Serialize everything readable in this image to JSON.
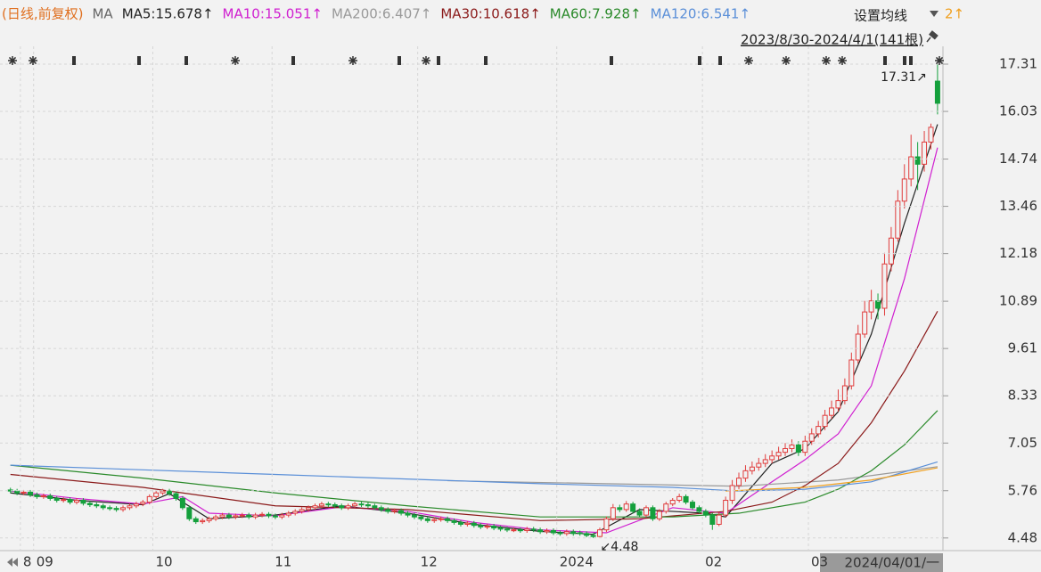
{
  "chart_data": {
    "type": "candlestick",
    "title_left": "(日线,前复权)",
    "ma_label": "MA",
    "settings": "设置均线",
    "range_label": "2023/8/30-2024/4/1(141根)",
    "cursor_label": "2024/04/01/一",
    "up_color": "#e03c3c",
    "down_color": "#14a03c",
    "ylim": [
      4.21,
      17.72
    ],
    "yticks": [
      17.31,
      16.03,
      14.74,
      13.46,
      12.18,
      10.89,
      9.61,
      8.33,
      7.05,
      5.76,
      4.48
    ],
    "grid": true,
    "xticks": [
      {
        "value": 2,
        "label": "8"
      },
      {
        "value": 4,
        "label": "09"
      },
      {
        "value": 22,
        "label": "10"
      },
      {
        "value": 40,
        "label": "11"
      },
      {
        "value": 62,
        "label": "12"
      },
      {
        "value": 83,
        "label": "2024"
      },
      {
        "value": 105,
        "label": "02"
      },
      {
        "value": 121,
        "label": "03"
      }
    ],
    "open": [
      5.78,
      5.75,
      5.7,
      5.72,
      5.65,
      5.6,
      5.62,
      5.55,
      5.5,
      5.52,
      5.45,
      5.5,
      5.42,
      5.38,
      5.35,
      5.3,
      5.28,
      5.25,
      5.3,
      5.35,
      5.4,
      5.45,
      5.6,
      5.7,
      5.75,
      5.68,
      5.55,
      5.3,
      5.0,
      4.92,
      4.95,
      5.0,
      5.05,
      5.1,
      5.05,
      5.08,
      5.1,
      5.05,
      5.1,
      5.12,
      5.08,
      5.05,
      5.1,
      5.15,
      5.2,
      5.25,
      5.3,
      5.35,
      5.4,
      5.38,
      5.35,
      5.3,
      5.35,
      5.4,
      5.38,
      5.35,
      5.3,
      5.25,
      5.2,
      5.22,
      5.15,
      5.1,
      5.05,
      5.0,
      4.95,
      4.98,
      5.0,
      4.95,
      4.9,
      4.85,
      4.88,
      4.82,
      4.78,
      4.8,
      4.75,
      4.72,
      4.7,
      4.7,
      4.68,
      4.72,
      4.7,
      4.65,
      4.68,
      4.62,
      4.6,
      4.65,
      4.62,
      4.6,
      4.55,
      4.52,
      4.7,
      5.0,
      5.3,
      5.25,
      5.4,
      5.2,
      5.1,
      5.3,
      5.0,
      5.2,
      5.4,
      5.5,
      5.6,
      5.45,
      5.3,
      5.2,
      5.1,
      4.85,
      5.1,
      5.5,
      5.9,
      6.1,
      6.3,
      6.4,
      6.5,
      6.6,
      6.7,
      6.8,
      6.9,
      7.0,
      6.8,
      7.1,
      7.3,
      7.5,
      7.8,
      8.0,
      8.2,
      8.6,
      9.3,
      10.0,
      10.6,
      10.9,
      10.7,
      11.9,
      12.6,
      13.6,
      14.2,
      14.8,
      14.6,
      15.2,
      16.85
    ],
    "high": [
      5.84,
      5.81,
      5.78,
      5.78,
      5.71,
      5.68,
      5.68,
      5.61,
      5.58,
      5.58,
      5.56,
      5.56,
      5.48,
      5.44,
      5.41,
      5.36,
      5.34,
      5.36,
      5.41,
      5.46,
      5.51,
      5.66,
      5.76,
      5.81,
      5.81,
      5.74,
      5.61,
      5.36,
      5.06,
      5.01,
      5.06,
      5.11,
      5.16,
      5.16,
      5.14,
      5.16,
      5.16,
      5.16,
      5.18,
      5.18,
      5.14,
      5.16,
      5.21,
      5.26,
      5.31,
      5.36,
      5.41,
      5.46,
      5.46,
      5.44,
      5.41,
      5.41,
      5.46,
      5.46,
      5.44,
      5.41,
      5.36,
      5.31,
      5.28,
      5.28,
      5.21,
      5.16,
      5.11,
      5.06,
      5.04,
      5.06,
      5.06,
      5.01,
      4.96,
      4.94,
      4.94,
      4.88,
      4.86,
      4.86,
      4.81,
      4.78,
      4.76,
      4.76,
      4.78,
      4.78,
      4.76,
      4.74,
      4.74,
      4.68,
      4.71,
      4.71,
      4.68,
      4.66,
      4.61,
      4.76,
      5.06,
      5.4,
      5.38,
      5.48,
      5.46,
      5.28,
      5.36,
      5.36,
      5.26,
      5.46,
      5.56,
      5.68,
      5.66,
      5.51,
      5.36,
      5.26,
      5.16,
      5.18,
      5.6,
      6.05,
      6.25,
      6.45,
      6.55,
      6.65,
      6.75,
      6.85,
      6.95,
      7.05,
      7.15,
      7.1,
      7.25,
      7.45,
      7.65,
      7.95,
      8.2,
      8.5,
      8.8,
      9.5,
      10.25,
      10.9,
      11.2,
      11.1,
      12.2,
      12.9,
      13.9,
      14.6,
      15.4,
      15.2,
      15.5,
      15.7,
      17.31
    ],
    "low": [
      5.69,
      5.64,
      5.64,
      5.59,
      5.54,
      5.54,
      5.49,
      5.44,
      5.44,
      5.39,
      5.39,
      5.36,
      5.32,
      5.29,
      5.24,
      5.22,
      5.19,
      5.19,
      5.24,
      5.29,
      5.34,
      5.39,
      5.54,
      5.64,
      5.62,
      5.49,
      5.24,
      4.94,
      4.86,
      4.86,
      4.89,
      4.94,
      4.99,
      4.99,
      4.99,
      5.02,
      4.99,
      4.99,
      5.04,
      5.02,
      4.99,
      4.99,
      5.04,
      5.09,
      5.14,
      5.19,
      5.24,
      5.29,
      5.32,
      5.29,
      5.24,
      5.24,
      5.29,
      5.32,
      5.29,
      5.24,
      5.19,
      5.14,
      5.14,
      5.09,
      5.04,
      4.99,
      4.94,
      4.89,
      4.89,
      4.92,
      4.89,
      4.84,
      4.79,
      4.79,
      4.76,
      4.72,
      4.72,
      4.69,
      4.66,
      4.64,
      4.64,
      4.62,
      4.62,
      4.64,
      4.59,
      4.59,
      4.56,
      4.54,
      4.54,
      4.54,
      4.54,
      4.5,
      4.48,
      4.5,
      4.64,
      4.94,
      5.18,
      5.19,
      5.14,
      5.04,
      5.04,
      4.94,
      4.94,
      5.14,
      5.34,
      5.44,
      5.39,
      5.24,
      5.14,
      5.04,
      4.7,
      4.8,
      5.04,
      5.4,
      5.8,
      6.0,
      6.2,
      6.3,
      6.4,
      6.5,
      6.6,
      6.7,
      6.8,
      6.7,
      6.7,
      7.0,
      7.2,
      7.4,
      7.7,
      7.9,
      8.1,
      8.5,
      9.2,
      9.9,
      10.4,
      10.4,
      10.5,
      11.7,
      12.5,
      13.4,
      14.0,
      13.9,
      14.4,
      15.0,
      15.95
    ],
    "close": [
      5.75,
      5.7,
      5.72,
      5.65,
      5.6,
      5.62,
      5.55,
      5.5,
      5.52,
      5.45,
      5.5,
      5.42,
      5.38,
      5.35,
      5.3,
      5.28,
      5.25,
      5.3,
      5.35,
      5.4,
      5.45,
      5.6,
      5.7,
      5.75,
      5.68,
      5.55,
      5.3,
      5.0,
      4.92,
      4.95,
      5.0,
      5.05,
      5.1,
      5.05,
      5.08,
      5.1,
      5.05,
      5.1,
      5.12,
      5.08,
      5.05,
      5.1,
      5.15,
      5.2,
      5.25,
      5.3,
      5.35,
      5.4,
      5.38,
      5.35,
      5.3,
      5.35,
      5.4,
      5.38,
      5.35,
      5.3,
      5.25,
      5.2,
      5.22,
      5.15,
      5.1,
      5.05,
      5.0,
      4.95,
      4.98,
      5.0,
      4.95,
      4.9,
      4.85,
      4.88,
      4.82,
      4.78,
      4.8,
      4.75,
      4.72,
      4.7,
      4.7,
      4.68,
      4.72,
      4.7,
      4.65,
      4.68,
      4.62,
      4.6,
      4.65,
      4.6,
      4.6,
      4.55,
      4.52,
      4.7,
      5.0,
      5.3,
      5.25,
      5.4,
      5.2,
      5.1,
      5.3,
      5.0,
      5.2,
      5.4,
      5.5,
      5.6,
      5.45,
      5.3,
      5.2,
      5.1,
      4.85,
      5.1,
      5.5,
      5.9,
      6.1,
      6.3,
      6.4,
      6.5,
      6.6,
      6.7,
      6.8,
      6.9,
      7.0,
      6.8,
      7.1,
      7.3,
      7.5,
      7.8,
      8.0,
      8.2,
      8.6,
      9.3,
      10.0,
      10.6,
      10.9,
      10.7,
      11.9,
      12.6,
      13.6,
      14.2,
      14.8,
      14.6,
      15.2,
      15.6,
      16.25
    ],
    "series": [
      {
        "name": "MA5:15.678↑",
        "color": "#222222",
        "x": [
          0,
          10,
          20,
          24,
          30,
          40,
          50,
          60,
          70,
          80,
          88,
          95,
          105,
          108,
          115,
          120,
          125,
          130,
          135,
          140
        ],
        "values": [
          5.7,
          5.5,
          5.38,
          5.68,
          5.0,
          5.1,
          5.35,
          5.15,
          4.85,
          4.66,
          4.58,
          5.25,
          5.15,
          5.05,
          6.5,
          6.9,
          7.9,
          10.0,
          13.0,
          15.68
        ]
      },
      {
        "name": "MA10:15.051↑",
        "color": "#d020d0",
        "x": [
          0,
          10,
          20,
          26,
          30,
          40,
          50,
          60,
          70,
          80,
          90,
          100,
          108,
          115,
          120,
          125,
          130,
          135,
          140
        ],
        "values": [
          5.75,
          5.55,
          5.4,
          5.6,
          5.15,
          5.08,
          5.32,
          5.2,
          4.9,
          4.7,
          4.62,
          5.3,
          5.15,
          6.0,
          6.6,
          7.3,
          8.6,
          11.5,
          15.05
        ]
      },
      {
        "name": "MA200:6.407↑",
        "color": "#999999",
        "x": [
          66,
          90,
          110,
          125,
          140
        ],
        "values": [
          6.03,
          5.95,
          5.88,
          6.05,
          6.41
        ]
      },
      {
        "name": "MA30:10.618↑",
        "color": "#8b1a1a",
        "x": [
          0,
          20,
          40,
          60,
          80,
          95,
          108,
          115,
          120,
          125,
          130,
          135,
          140
        ],
        "values": [
          6.2,
          5.85,
          5.35,
          5.25,
          4.95,
          5.0,
          5.2,
          5.45,
          5.9,
          6.5,
          7.6,
          9.0,
          10.62
        ]
      },
      {
        "name": "MA60:7.928↑",
        "color": "#2a8a2a",
        "x": [
          0,
          20,
          40,
          60,
          80,
          100,
          110,
          120,
          125,
          130,
          135,
          140
        ],
        "values": [
          6.45,
          6.1,
          5.7,
          5.35,
          5.05,
          5.05,
          5.15,
          5.45,
          5.8,
          6.3,
          7.0,
          7.93
        ]
      },
      {
        "name": "MA120:6.541↑",
        "color": "#5a8fd8",
        "x": [
          0,
          40,
          80,
          100,
          110,
          120,
          130,
          140
        ],
        "values": [
          6.45,
          6.2,
          5.95,
          5.85,
          5.75,
          5.8,
          6.0,
          6.54
        ]
      },
      {
        "name": "2↑",
        "color": "#f0a020",
        "x": [
          108,
          120,
          130,
          140
        ],
        "values": [
          5.75,
          5.85,
          6.05,
          6.38
        ]
      }
    ],
    "annotations": [
      {
        "label": "17.31↗",
        "value": 17.31,
        "x": 140
      },
      {
        "label": "↙4.48",
        "value": 4.48,
        "x": 88
      }
    ]
  }
}
